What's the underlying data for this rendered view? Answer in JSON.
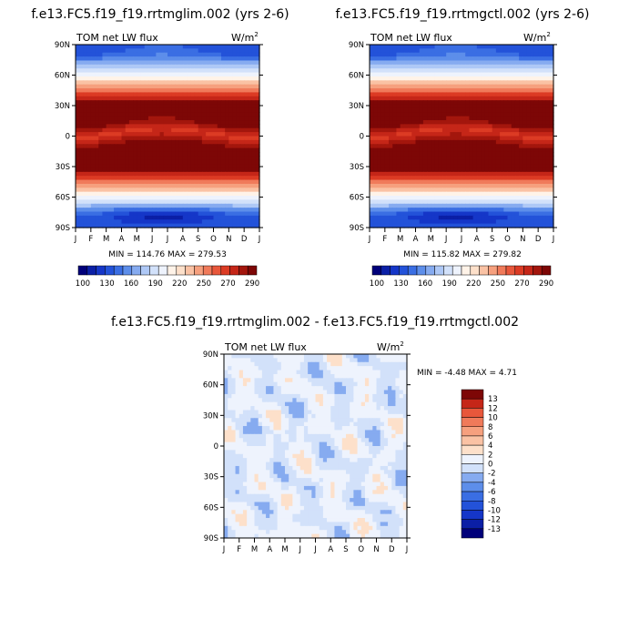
{
  "palette": {
    "levels": [
      100,
      110,
      120,
      130,
      140,
      150,
      160,
      170,
      180,
      190,
      200,
      210,
      220,
      230,
      240,
      250,
      260,
      270,
      280,
      290
    ],
    "colors": [
      "#00007a",
      "#0b1fa6",
      "#1536c8",
      "#2352d9",
      "#3a6ee3",
      "#5d8eea",
      "#86abf0",
      "#aec8f6",
      "#d2e1fa",
      "#eef3fd",
      "#fff3e8",
      "#fde0ca",
      "#fac2a4",
      "#f6a07e",
      "#f07a5a",
      "#e8573b",
      "#dc3b24",
      "#c52618",
      "#a3160d",
      "#7d0706"
    ],
    "diff_levels": [
      -13,
      -12,
      -10,
      -8,
      -6,
      -4,
      -2,
      0,
      2,
      4,
      6,
      8,
      10,
      12,
      13
    ],
    "diff_colors": [
      "#00007a",
      "#0b1fa6",
      "#1536c8",
      "#2352d9",
      "#3a6ee3",
      "#5d8eea",
      "#86abf0",
      "#d2e1fa",
      "#eef3fd",
      "#fde0ca",
      "#fac2a4",
      "#f6a07e",
      "#f07a5a",
      "#e8573b",
      "#c52618",
      "#7d0706"
    ]
  },
  "chart_data": [
    {
      "type": "heatmap",
      "title": "f.e13.FC5.f19_f19.rrtmglim.002 (yrs 2-6)",
      "left_label": "TOM net LW flux",
      "units_label": "W/m",
      "units_sup": "2",
      "x_ticks": [
        "J",
        "F",
        "M",
        "A",
        "M",
        "J",
        "J",
        "A",
        "S",
        "O",
        "N",
        "D",
        "J"
      ],
      "y_ticks": [
        "90N",
        "60N",
        "30N",
        "0",
        "30S",
        "60S",
        "90S"
      ],
      "stats": "MIN = 114.76  MAX = 279.53",
      "min": 114.76,
      "max": 279.53,
      "colorbar_labels": [
        "100",
        "130",
        "160",
        "190",
        "220",
        "250",
        "270",
        "290"
      ]
    },
    {
      "type": "heatmap",
      "title": "f.e13.FC5.f19_f19.rrtmgctl.002 (yrs 2-6)",
      "left_label": "TOM net LW flux",
      "units_label": "W/m",
      "units_sup": "2",
      "x_ticks": [
        "J",
        "F",
        "M",
        "A",
        "M",
        "J",
        "J",
        "A",
        "S",
        "O",
        "N",
        "D",
        "J"
      ],
      "y_ticks": [
        "90N",
        "60N",
        "30N",
        "0",
        "30S",
        "60S",
        "90S"
      ],
      "stats": "MIN = 115.82  MAX = 279.82",
      "min": 115.82,
      "max": 279.82,
      "colorbar_labels": [
        "100",
        "130",
        "160",
        "190",
        "220",
        "250",
        "270",
        "290"
      ]
    },
    {
      "type": "heatmap",
      "title": "f.e13.FC5.f19_f19.rrtmglim.002 - f.e13.FC5.f19_f19.rrtmgctl.002",
      "left_label": "TOM net LW flux",
      "units_label": "W/m",
      "units_sup": "2",
      "x_ticks": [
        "J",
        "F",
        "M",
        "A",
        "M",
        "J",
        "J",
        "A",
        "S",
        "O",
        "N",
        "D",
        "J"
      ],
      "y_ticks": [
        "90N",
        "60N",
        "30N",
        "0",
        "30S",
        "60S",
        "90S"
      ],
      "stats": "MIN =   -4.48 MAX =   4.71",
      "min": -4.48,
      "max": 4.71,
      "colorbar_labels": [
        "13",
        "12",
        "10",
        "8",
        "6",
        "4",
        "2",
        "0",
        "-2",
        "-4",
        "-6",
        "-8",
        "-10",
        "-12",
        "-13"
      ]
    }
  ]
}
